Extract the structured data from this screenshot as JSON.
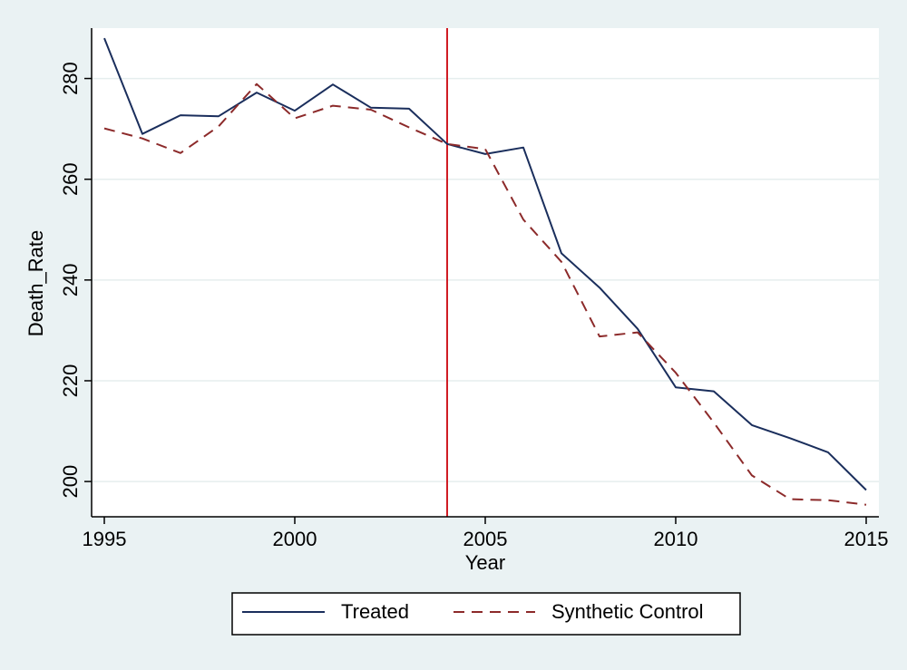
{
  "chart_data": {
    "type": "line",
    "xlabel": "Year",
    "ylabel": "Death_Rate",
    "xlim": [
      1995,
      2015
    ],
    "ylim": [
      193,
      290
    ],
    "x_ticks": [
      1995,
      2000,
      2005,
      2010,
      2015
    ],
    "y_ticks": [
      200,
      220,
      240,
      260,
      280
    ],
    "grid": "horizontal",
    "legend_position": "bottom",
    "x": [
      1995,
      1996,
      1997,
      1998,
      1999,
      2000,
      2001,
      2002,
      2003,
      2004,
      2005,
      2006,
      2007,
      2008,
      2009,
      2010,
      2011,
      2012,
      2013,
      2014,
      2015
    ],
    "series": [
      {
        "name": "Treated",
        "style": "solid",
        "color": "#1a2e5c",
        "values": [
          288,
          269,
          272.7,
          272.5,
          277.2,
          273.6,
          278.8,
          274.2,
          274.0,
          267.0,
          265.0,
          266.3,
          245.3,
          238.5,
          230.3,
          218.7,
          217.9,
          211.2,
          208.6,
          205.8,
          198.3
        ]
      },
      {
        "name": "Synthetic Control",
        "style": "dashed",
        "color": "#8c2a2a",
        "values": [
          270.1,
          268.1,
          265.2,
          270.5,
          278.9,
          272.1,
          274.6,
          273.8,
          270.3,
          267.0,
          266.0,
          252.0,
          243.6,
          228.8,
          229.6,
          221.6,
          211.7,
          201.2,
          196.5,
          196.3,
          195.4
        ]
      }
    ],
    "reference_line": {
      "x": 2004,
      "color": "#d01c24"
    }
  }
}
